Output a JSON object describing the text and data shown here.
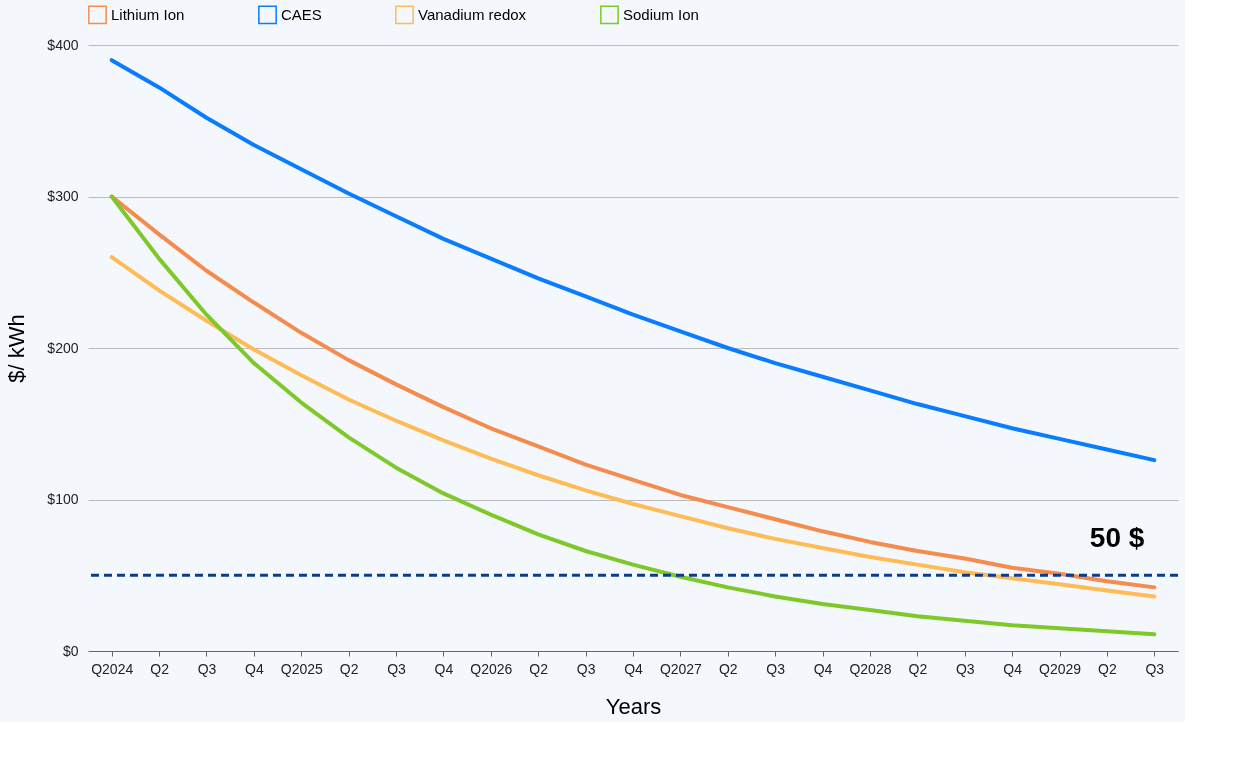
{
  "chart_data": {
    "type": "line",
    "xlabel": "Years",
    "ylabel": "$/ kWh",
    "categories": [
      "Q2024",
      "Q2",
      "Q3",
      "Q4",
      "Q2025",
      "Q2",
      "Q3",
      "Q4",
      "Q2026",
      "Q2",
      "Q3",
      "Q4",
      "Q2027",
      "Q2",
      "Q3",
      "Q4",
      "Q2028",
      "Q2",
      "Q3",
      "Q4",
      "Q2029",
      "Q2",
      "Q3"
    ],
    "series": [
      {
        "name": "Lithium Ion",
        "color": "#f58b4c",
        "values": [
          300,
          275,
          251,
          230,
          210,
          192,
          176,
          161,
          147,
          135,
          123,
          113,
          103,
          95,
          87,
          79,
          72,
          66,
          61,
          55,
          51,
          46,
          42
        ]
      },
      {
        "name": "CAES",
        "color": "#0a7cff",
        "values": [
          390,
          372,
          352,
          334,
          318,
          302,
          287,
          272,
          259,
          246,
          234,
          222,
          211,
          200,
          190,
          181,
          172,
          163,
          155,
          147,
          140,
          133,
          126
        ]
      },
      {
        "name": "Vanadium redox",
        "color": "#ffbb55",
        "values": [
          260,
          238,
          218,
          199,
          182,
          166,
          152,
          139,
          127,
          116,
          106,
          97,
          89,
          81,
          74,
          68,
          62,
          57,
          52,
          48,
          44,
          40,
          36
        ]
      },
      {
        "name": "Sodium Ion",
        "color": "#7ec82a",
        "values": [
          300,
          259,
          222,
          190,
          164,
          141,
          121,
          104,
          90,
          77,
          66,
          57,
          49,
          42,
          36,
          31,
          27,
          23,
          20,
          17,
          15,
          13,
          11
        ]
      }
    ],
    "ylim": [
      0,
      400
    ],
    "yticks": [
      {
        "value": 0,
        "label": "$0"
      },
      {
        "value": 100,
        "label": "$100"
      },
      {
        "value": 200,
        "label": "$200"
      },
      {
        "value": 300,
        "label": "$300"
      },
      {
        "value": 400,
        "label": "$400"
      }
    ],
    "ref_lines": [
      {
        "axis": "y",
        "value": 50,
        "label": "50 $",
        "color": "#0a3d91",
        "line_style": "dashed"
      }
    ],
    "grid": "y",
    "legend": "top",
    "marker": "none",
    "line_style": "solid"
  }
}
